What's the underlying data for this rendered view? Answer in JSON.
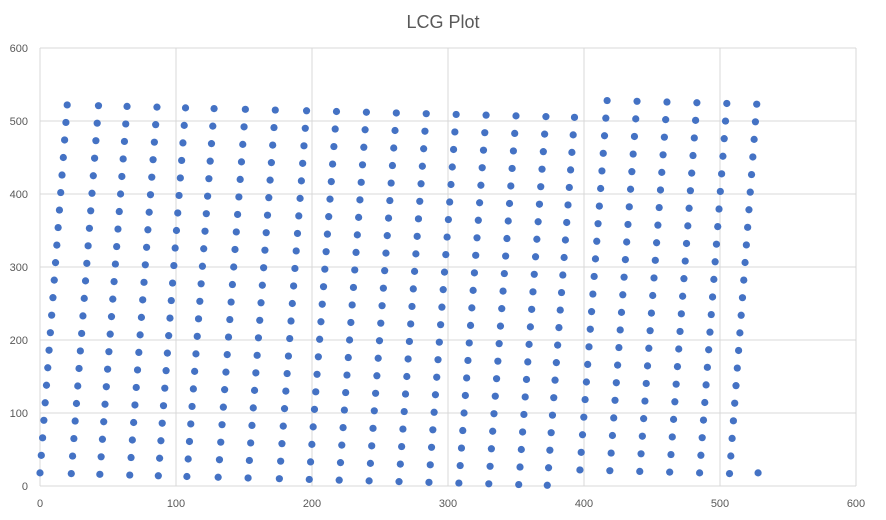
{
  "chart_data": {
    "type": "scatter",
    "title": "LCG Plot",
    "xlabel": "",
    "ylabel": "",
    "xlim": [
      0,
      600
    ],
    "ylim": [
      0,
      600
    ],
    "xticks": [
      "0",
      "100",
      "200",
      "300",
      "400",
      "500",
      "600"
    ],
    "yticks": [
      "0",
      "100",
      "200",
      "300",
      "400",
      "500",
      "600"
    ],
    "grid": true,
    "legend": "none",
    "marker_color": "#4472c4",
    "rows": [
      {
        "y0": 522,
        "x0": 20,
        "dx": 22,
        "dy": -1.0,
        "n": 18
      },
      {
        "y0": 528,
        "x0": 417,
        "dx": 22,
        "dy": -1.0,
        "n": 6
      }
    ],
    "columns_note": ""
  }
}
